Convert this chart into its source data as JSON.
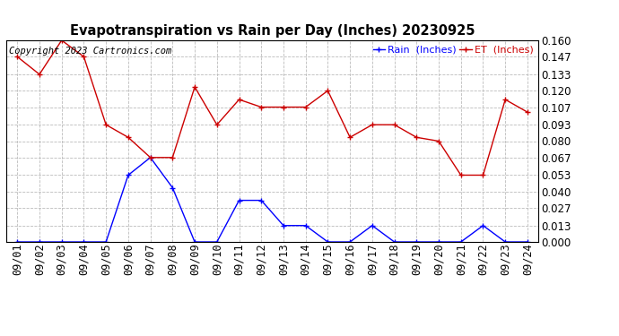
{
  "title": "Evapotranspiration vs Rain per Day (Inches) 20230925",
  "copyright": "Copyright 2023 Cartronics.com",
  "legend_rain": "Rain  (Inches)",
  "legend_et": "ET  (Inches)",
  "dates": [
    "09/01",
    "09/02",
    "09/03",
    "09/04",
    "09/05",
    "09/06",
    "09/07",
    "09/08",
    "09/09",
    "09/10",
    "09/11",
    "09/12",
    "09/13",
    "09/14",
    "09/15",
    "09/16",
    "09/17",
    "09/18",
    "09/19",
    "09/20",
    "09/21",
    "09/22",
    "09/23",
    "09/24"
  ],
  "et_values": [
    0.147,
    0.133,
    0.16,
    0.147,
    0.093,
    0.083,
    0.067,
    0.067,
    0.123,
    0.093,
    0.113,
    0.107,
    0.107,
    0.107,
    0.12,
    0.083,
    0.093,
    0.093,
    0.083,
    0.08,
    0.053,
    0.053,
    0.113,
    0.103
  ],
  "rain_values": [
    0.0,
    0.0,
    0.0,
    0.0,
    0.0,
    0.053,
    0.067,
    0.043,
    0.0,
    0.0,
    0.033,
    0.033,
    0.013,
    0.013,
    0.0,
    0.0,
    0.013,
    0.0,
    0.0,
    0.0,
    0.0,
    0.013,
    0.0,
    0.0
  ],
  "ylim": [
    0.0,
    0.16
  ],
  "yticks": [
    0.0,
    0.013,
    0.027,
    0.04,
    0.053,
    0.067,
    0.08,
    0.093,
    0.107,
    0.12,
    0.133,
    0.147,
    0.16
  ],
  "rain_color": "#0000ff",
  "et_color": "#cc0000",
  "background_color": "#ffffff",
  "grid_color": "#bbbbbb",
  "title_fontsize": 10.5,
  "tick_fontsize": 8.5,
  "copyright_fontsize": 7.5
}
